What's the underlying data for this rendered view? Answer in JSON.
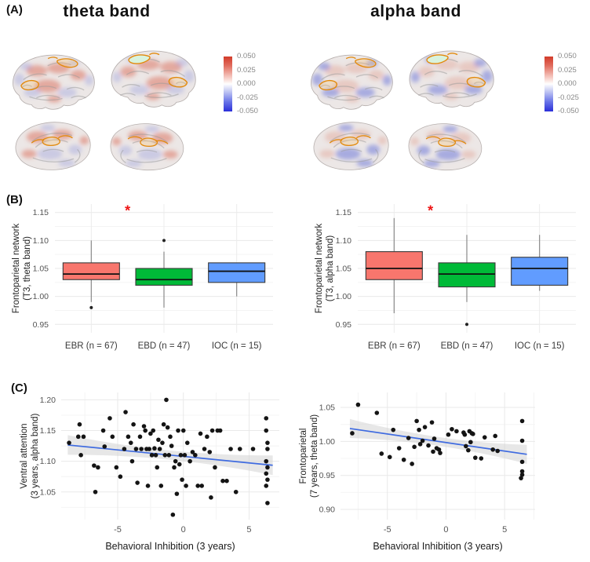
{
  "figure": {
    "panel_labels": {
      "a": "(A)",
      "b": "(B)",
      "c": "(C)"
    }
  },
  "panel_a": {
    "bands": [
      {
        "id": "theta",
        "title": "theta band"
      },
      {
        "id": "alpha",
        "title": "alpha band"
      }
    ],
    "colorbar_ticks": [
      "0.050",
      "0.025",
      "0.000",
      "-0.025",
      "-0.050"
    ],
    "colorbar_top_color": "#d23b2a",
    "colorbar_bottom_color": "#2b2fd9",
    "roi_outline_color": "#e2890b"
  },
  "chart_data": [
    {
      "type": "box",
      "panel": "B-left",
      "ylabel": [
        "Frontoparietal network",
        "(T3, theta band)"
      ],
      "categories": [
        "EBR (n = 67)",
        "EBD (n = 47)",
        "IOC (n = 15)"
      ],
      "box_colors": [
        "#F8766D",
        "#00BA38",
        "#619CFF"
      ],
      "yticks": [
        "0.95",
        "1.00",
        "1.05",
        "1.10",
        "1.15"
      ],
      "ylim": [
        0.935,
        1.165
      ],
      "boxes": [
        {
          "whisker_low": 0.99,
          "q1": 1.03,
          "median": 1.04,
          "q3": 1.06,
          "whisker_high": 1.1,
          "outliers": [
            0.98
          ]
        },
        {
          "whisker_low": 0.98,
          "q1": 1.02,
          "median": 1.03,
          "q3": 1.05,
          "whisker_high": 1.08,
          "outliers": [
            1.1
          ]
        },
        {
          "whisker_low": 1.0,
          "q1": 1.025,
          "median": 1.045,
          "q3": 1.06,
          "whisker_high": 1.06,
          "outliers": []
        }
      ],
      "significance": {
        "label": "*",
        "between": [
          0,
          1
        ],
        "y": 1.152,
        "color": "#ee1414"
      }
    },
    {
      "type": "box",
      "panel": "B-right",
      "ylabel": [
        "Frontoparietal network",
        "(T3, alpha band)"
      ],
      "categories": [
        "EBR (n = 67)",
        "EBD (n = 47)",
        "IOC (n = 15)"
      ],
      "box_colors": [
        "#F8766D",
        "#00BA38",
        "#619CFF"
      ],
      "yticks": [
        "0.95",
        "1.00",
        "1.05",
        "1.10",
        "1.15"
      ],
      "ylim": [
        0.935,
        1.165
      ],
      "boxes": [
        {
          "whisker_low": 0.97,
          "q1": 1.03,
          "median": 1.05,
          "q3": 1.08,
          "whisker_high": 1.14,
          "outliers": []
        },
        {
          "whisker_low": 0.99,
          "q1": 1.017,
          "median": 1.04,
          "q3": 1.06,
          "whisker_high": 1.11,
          "outliers": [
            0.95
          ]
        },
        {
          "whisker_low": 1.01,
          "q1": 1.02,
          "median": 1.05,
          "q3": 1.07,
          "whisker_high": 1.11,
          "outliers": []
        }
      ],
      "significance": {
        "label": "*",
        "between": [
          0,
          1
        ],
        "y": 1.152,
        "color": "#ee1414"
      }
    },
    {
      "type": "scatter",
      "panel": "C-left",
      "xlabel": "Behavioral Inhibition (3 years)",
      "ylabel": [
        "Ventral attention",
        "(3 years, alpha band)"
      ],
      "xticks": [
        -5,
        0,
        5
      ],
      "yticks": [
        "1.05",
        "1.10",
        "1.15",
        "1.20"
      ],
      "xlim": [
        -9.3,
        7.3
      ],
      "ylim": [
        1.005,
        1.212
      ],
      "point_color": "#141414",
      "trend": {
        "x": [
          -8.8,
          6.8
        ],
        "y": [
          1.1265,
          1.0935
        ],
        "color": "#3f6be0"
      },
      "ribbon": {
        "mid": 0.0075,
        "end": 0.016,
        "color": "#d4d4d4"
      },
      "points": [
        [
          -8.7,
          1.13
        ],
        [
          -8.0,
          1.14
        ],
        [
          -7.9,
          1.16
        ],
        [
          -7.8,
          1.11
        ],
        [
          -7.6,
          1.14
        ],
        [
          -6.8,
          1.093
        ],
        [
          -6.7,
          1.05
        ],
        [
          -6.5,
          1.09
        ],
        [
          -6.1,
          1.15
        ],
        [
          -6.0,
          1.124
        ],
        [
          -5.6,
          1.17
        ],
        [
          -5.4,
          1.14
        ],
        [
          -5.1,
          1.09
        ],
        [
          -4.8,
          1.075
        ],
        [
          -4.5,
          1.12
        ],
        [
          -4.4,
          1.18
        ],
        [
          -4.2,
          1.14
        ],
        [
          -4.0,
          1.13
        ],
        [
          -3.9,
          1.1
        ],
        [
          -3.8,
          1.16
        ],
        [
          -3.6,
          1.12
        ],
        [
          -3.5,
          1.065
        ],
        [
          -3.3,
          1.14
        ],
        [
          -3.2,
          1.12
        ],
        [
          -3.0,
          1.157
        ],
        [
          -2.9,
          1.15
        ],
        [
          -2.8,
          1.12
        ],
        [
          -2.7,
          1.06
        ],
        [
          -2.6,
          1.12
        ],
        [
          -2.5,
          1.145
        ],
        [
          -2.4,
          1.11
        ],
        [
          -2.3,
          1.15
        ],
        [
          -2.2,
          1.121
        ],
        [
          -2.1,
          1.11
        ],
        [
          -2.0,
          1.09
        ],
        [
          -1.9,
          1.135
        ],
        [
          -1.8,
          1.12
        ],
        [
          -1.7,
          1.06
        ],
        [
          -1.6,
          1.13
        ],
        [
          -1.5,
          1.16
        ],
        [
          -1.4,
          1.11
        ],
        [
          -1.3,
          1.2
        ],
        [
          -1.2,
          1.155
        ],
        [
          -1.1,
          1.11
        ],
        [
          -1.0,
          1.14
        ],
        [
          -0.9,
          1.125
        ],
        [
          -0.8,
          1.013
        ],
        [
          -0.7,
          1.09
        ],
        [
          -0.6,
          1.1
        ],
        [
          -0.5,
          1.047
        ],
        [
          -0.4,
          1.15
        ],
        [
          -0.3,
          1.095
        ],
        [
          -0.2,
          1.11
        ],
        [
          -0.1,
          1.07
        ],
        [
          0.0,
          1.15
        ],
        [
          0.1,
          1.11
        ],
        [
          0.2,
          1.06
        ],
        [
          0.3,
          1.13
        ],
        [
          0.5,
          1.1
        ],
        [
          0.7,
          1.115
        ],
        [
          0.9,
          1.11
        ],
        [
          1.1,
          1.06
        ],
        [
          1.3,
          1.145
        ],
        [
          1.4,
          1.06
        ],
        [
          1.6,
          1.12
        ],
        [
          1.8,
          1.14
        ],
        [
          2.0,
          1.115
        ],
        [
          2.1,
          1.041
        ],
        [
          2.2,
          1.15
        ],
        [
          2.4,
          1.09
        ],
        [
          2.6,
          1.15
        ],
        [
          2.8,
          1.15
        ],
        [
          3.0,
          1.068
        ],
        [
          3.3,
          1.068
        ],
        [
          3.6,
          1.12
        ],
        [
          4.0,
          1.05
        ],
        [
          4.3,
          1.12
        ],
        [
          5.3,
          1.12
        ],
        [
          6.3,
          1.17
        ],
        [
          6.3,
          1.15
        ],
        [
          6.4,
          1.13
        ],
        [
          6.4,
          1.12
        ],
        [
          6.3,
          1.1
        ],
        [
          6.4,
          1.09
        ],
        [
          6.3,
          1.08
        ],
        [
          6.4,
          1.07
        ],
        [
          6.3,
          1.06
        ],
        [
          6.4,
          1.032
        ]
      ]
    },
    {
      "type": "scatter",
      "panel": "C-right",
      "xlabel": "Behavioral Inhibition (3 years)",
      "ylabel": [
        "Frontoparietal",
        "(7 years, theta band)"
      ],
      "xticks": [
        -5,
        0,
        5
      ],
      "yticks": [
        "0.90",
        "0.95",
        "1.00",
        "1.05"
      ],
      "xlim": [
        -9.0,
        7.6
      ],
      "ylim": [
        0.885,
        1.072
      ],
      "point_color": "#141414",
      "trend": {
        "x": [
          -8.2,
          6.9
        ],
        "y": [
          1.019,
          0.981
        ],
        "color": "#3f6be0"
      },
      "ribbon": {
        "mid": 0.0065,
        "end": 0.014,
        "color": "#d4d4d4"
      },
      "points": [
        [
          -8.0,
          1.012
        ],
        [
          -7.5,
          1.054
        ],
        [
          -5.9,
          1.042
        ],
        [
          -5.5,
          0.982
        ],
        [
          -4.8,
          0.977
        ],
        [
          -4.5,
          1.017
        ],
        [
          -4.0,
          0.99
        ],
        [
          -3.6,
          0.973
        ],
        [
          -3.2,
          1.005
        ],
        [
          -2.9,
          0.967
        ],
        [
          -2.7,
          0.992
        ],
        [
          -2.5,
          1.03
        ],
        [
          -2.3,
          1.017
        ],
        [
          -2.2,
          0.996
        ],
        [
          -2.0,
          1.001
        ],
        [
          -1.8,
          1.021
        ],
        [
          -1.5,
          0.994
        ],
        [
          -1.2,
          1.028
        ],
        [
          -1.1,
          0.985
        ],
        [
          -1.0,
          1.004
        ],
        [
          -0.8,
          0.99
        ],
        [
          -0.6,
          0.988
        ],
        [
          -0.5,
          0.983
        ],
        [
          0.2,
          1.01
        ],
        [
          0.5,
          1.018
        ],
        [
          0.9,
          1.015
        ],
        [
          1.5,
          1.013
        ],
        [
          1.6,
          1.01
        ],
        [
          1.7,
          0.993
        ],
        [
          1.9,
          0.987
        ],
        [
          2.0,
          1.015
        ],
        [
          2.1,
          0.999
        ],
        [
          2.2,
          1.012
        ],
        [
          2.3,
          1.011
        ],
        [
          2.5,
          0.976
        ],
        [
          3.0,
          0.975
        ],
        [
          3.3,
          1.006
        ],
        [
          4.0,
          0.988
        ],
        [
          4.2,
          1.008
        ],
        [
          4.4,
          0.986
        ],
        [
          6.5,
          1.03
        ],
        [
          6.5,
          1.001
        ],
        [
          6.5,
          0.97
        ],
        [
          6.5,
          0.956
        ],
        [
          6.5,
          0.951
        ],
        [
          6.4,
          0.946
        ]
      ]
    }
  ]
}
